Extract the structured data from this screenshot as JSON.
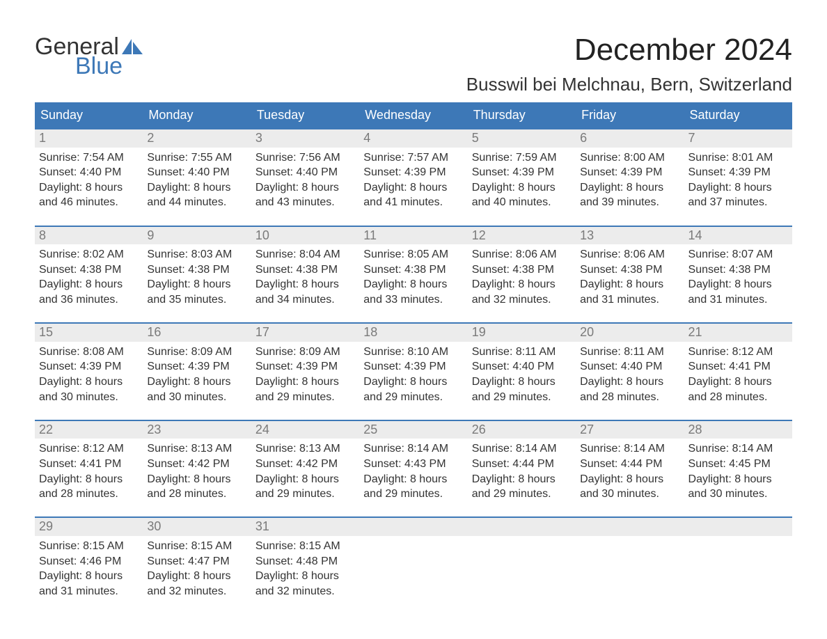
{
  "brand": {
    "general": "General",
    "blue": "Blue",
    "logo_text_color": "#333333",
    "logo_blue_color": "#3d78b7"
  },
  "title": {
    "month": "December 2024",
    "location": "Busswil bei Melchnau, Bern, Switzerland"
  },
  "styling": {
    "header_bg": "#3d78b7",
    "header_text_color": "#ffffff",
    "daynum_bg": "#ececec",
    "daynum_border": "#3d78b7",
    "daynum_text": "#7a7a7a",
    "body_text": "#333333",
    "page_bg": "#ffffff",
    "title_fontsize": 44,
    "location_fontsize": 26,
    "dayname_fontsize": 18,
    "cell_fontsize": 16
  },
  "day_names": [
    "Sunday",
    "Monday",
    "Tuesday",
    "Wednesday",
    "Thursday",
    "Friday",
    "Saturday"
  ],
  "weeks": [
    [
      {
        "num": "1",
        "sunrise": "Sunrise: 7:54 AM",
        "sunset": "Sunset: 4:40 PM",
        "day1": "Daylight: 8 hours",
        "day2": "and 46 minutes."
      },
      {
        "num": "2",
        "sunrise": "Sunrise: 7:55 AM",
        "sunset": "Sunset: 4:40 PM",
        "day1": "Daylight: 8 hours",
        "day2": "and 44 minutes."
      },
      {
        "num": "3",
        "sunrise": "Sunrise: 7:56 AM",
        "sunset": "Sunset: 4:40 PM",
        "day1": "Daylight: 8 hours",
        "day2": "and 43 minutes."
      },
      {
        "num": "4",
        "sunrise": "Sunrise: 7:57 AM",
        "sunset": "Sunset: 4:39 PM",
        "day1": "Daylight: 8 hours",
        "day2": "and 41 minutes."
      },
      {
        "num": "5",
        "sunrise": "Sunrise: 7:59 AM",
        "sunset": "Sunset: 4:39 PM",
        "day1": "Daylight: 8 hours",
        "day2": "and 40 minutes."
      },
      {
        "num": "6",
        "sunrise": "Sunrise: 8:00 AM",
        "sunset": "Sunset: 4:39 PM",
        "day1": "Daylight: 8 hours",
        "day2": "and 39 minutes."
      },
      {
        "num": "7",
        "sunrise": "Sunrise: 8:01 AM",
        "sunset": "Sunset: 4:39 PM",
        "day1": "Daylight: 8 hours",
        "day2": "and 37 minutes."
      }
    ],
    [
      {
        "num": "8",
        "sunrise": "Sunrise: 8:02 AM",
        "sunset": "Sunset: 4:38 PM",
        "day1": "Daylight: 8 hours",
        "day2": "and 36 minutes."
      },
      {
        "num": "9",
        "sunrise": "Sunrise: 8:03 AM",
        "sunset": "Sunset: 4:38 PM",
        "day1": "Daylight: 8 hours",
        "day2": "and 35 minutes."
      },
      {
        "num": "10",
        "sunrise": "Sunrise: 8:04 AM",
        "sunset": "Sunset: 4:38 PM",
        "day1": "Daylight: 8 hours",
        "day2": "and 34 minutes."
      },
      {
        "num": "11",
        "sunrise": "Sunrise: 8:05 AM",
        "sunset": "Sunset: 4:38 PM",
        "day1": "Daylight: 8 hours",
        "day2": "and 33 minutes."
      },
      {
        "num": "12",
        "sunrise": "Sunrise: 8:06 AM",
        "sunset": "Sunset: 4:38 PM",
        "day1": "Daylight: 8 hours",
        "day2": "and 32 minutes."
      },
      {
        "num": "13",
        "sunrise": "Sunrise: 8:06 AM",
        "sunset": "Sunset: 4:38 PM",
        "day1": "Daylight: 8 hours",
        "day2": "and 31 minutes."
      },
      {
        "num": "14",
        "sunrise": "Sunrise: 8:07 AM",
        "sunset": "Sunset: 4:38 PM",
        "day1": "Daylight: 8 hours",
        "day2": "and 31 minutes."
      }
    ],
    [
      {
        "num": "15",
        "sunrise": "Sunrise: 8:08 AM",
        "sunset": "Sunset: 4:39 PM",
        "day1": "Daylight: 8 hours",
        "day2": "and 30 minutes."
      },
      {
        "num": "16",
        "sunrise": "Sunrise: 8:09 AM",
        "sunset": "Sunset: 4:39 PM",
        "day1": "Daylight: 8 hours",
        "day2": "and 30 minutes."
      },
      {
        "num": "17",
        "sunrise": "Sunrise: 8:09 AM",
        "sunset": "Sunset: 4:39 PM",
        "day1": "Daylight: 8 hours",
        "day2": "and 29 minutes."
      },
      {
        "num": "18",
        "sunrise": "Sunrise: 8:10 AM",
        "sunset": "Sunset: 4:39 PM",
        "day1": "Daylight: 8 hours",
        "day2": "and 29 minutes."
      },
      {
        "num": "19",
        "sunrise": "Sunrise: 8:11 AM",
        "sunset": "Sunset: 4:40 PM",
        "day1": "Daylight: 8 hours",
        "day2": "and 29 minutes."
      },
      {
        "num": "20",
        "sunrise": "Sunrise: 8:11 AM",
        "sunset": "Sunset: 4:40 PM",
        "day1": "Daylight: 8 hours",
        "day2": "and 28 minutes."
      },
      {
        "num": "21",
        "sunrise": "Sunrise: 8:12 AM",
        "sunset": "Sunset: 4:41 PM",
        "day1": "Daylight: 8 hours",
        "day2": "and 28 minutes."
      }
    ],
    [
      {
        "num": "22",
        "sunrise": "Sunrise: 8:12 AM",
        "sunset": "Sunset: 4:41 PM",
        "day1": "Daylight: 8 hours",
        "day2": "and 28 minutes."
      },
      {
        "num": "23",
        "sunrise": "Sunrise: 8:13 AM",
        "sunset": "Sunset: 4:42 PM",
        "day1": "Daylight: 8 hours",
        "day2": "and 28 minutes."
      },
      {
        "num": "24",
        "sunrise": "Sunrise: 8:13 AM",
        "sunset": "Sunset: 4:42 PM",
        "day1": "Daylight: 8 hours",
        "day2": "and 29 minutes."
      },
      {
        "num": "25",
        "sunrise": "Sunrise: 8:14 AM",
        "sunset": "Sunset: 4:43 PM",
        "day1": "Daylight: 8 hours",
        "day2": "and 29 minutes."
      },
      {
        "num": "26",
        "sunrise": "Sunrise: 8:14 AM",
        "sunset": "Sunset: 4:44 PM",
        "day1": "Daylight: 8 hours",
        "day2": "and 29 minutes."
      },
      {
        "num": "27",
        "sunrise": "Sunrise: 8:14 AM",
        "sunset": "Sunset: 4:44 PM",
        "day1": "Daylight: 8 hours",
        "day2": "and 30 minutes."
      },
      {
        "num": "28",
        "sunrise": "Sunrise: 8:14 AM",
        "sunset": "Sunset: 4:45 PM",
        "day1": "Daylight: 8 hours",
        "day2": "and 30 minutes."
      }
    ],
    [
      {
        "num": "29",
        "sunrise": "Sunrise: 8:15 AM",
        "sunset": "Sunset: 4:46 PM",
        "day1": "Daylight: 8 hours",
        "day2": "and 31 minutes."
      },
      {
        "num": "30",
        "sunrise": "Sunrise: 8:15 AM",
        "sunset": "Sunset: 4:47 PM",
        "day1": "Daylight: 8 hours",
        "day2": "and 32 minutes."
      },
      {
        "num": "31",
        "sunrise": "Sunrise: 8:15 AM",
        "sunset": "Sunset: 4:48 PM",
        "day1": "Daylight: 8 hours",
        "day2": "and 32 minutes."
      },
      null,
      null,
      null,
      null
    ]
  ]
}
